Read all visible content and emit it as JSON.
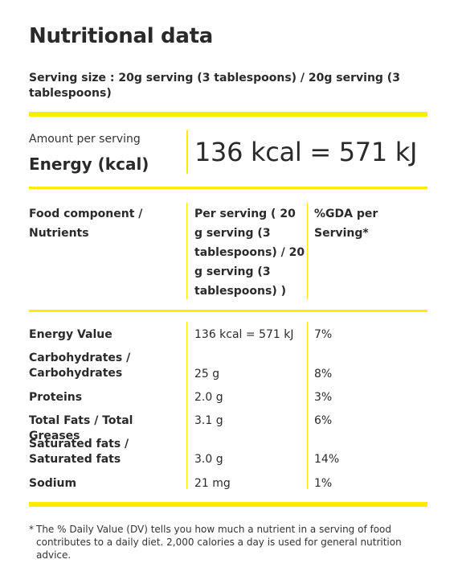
{
  "title": "Nutritional data",
  "serving_size": "Serving size : 20g serving (3 tablespoons) / 20g serving (3 tablespoons)",
  "energy_box": {
    "amount_label": "Amount per serving",
    "energy_label": "Energy (kcal)",
    "energy_value": "136 kcal = 571 kJ"
  },
  "table": {
    "headers": {
      "component": "Food component / Nutrients",
      "per_serving": "Per serving ( 20 g serving (3 tablespoons) / 20 g serving (3 tablespoons) )",
      "gda": "%GDA per Serving*"
    },
    "rows": [
      {
        "name": "Energy Value",
        "value": "136 kcal = 571 kJ",
        "pct": "7%"
      },
      {
        "name": "Carbohydrates / Carbohydrates",
        "value": "25 g",
        "pct": "8%"
      },
      {
        "name": "Proteins",
        "value": "2.0 g",
        "pct": "3%"
      },
      {
        "name": "Total Fats / Total Greases",
        "value": "3.1 g",
        "pct": "6%"
      },
      {
        "name": "Saturated fats / Saturated fats",
        "value": "3.0 g",
        "pct": "14%"
      },
      {
        "name": "Sodium",
        "value": "21 mg",
        "pct": "1%"
      }
    ]
  },
  "footnote": {
    "marker": "*",
    "text": "The % Daily Value (DV) tells you how much a nutrient in a serving of food contributes to a daily diet. 2,000 calories a day is used for general nutrition advice."
  },
  "colors": {
    "accent": "#ffec00",
    "text": "#2a2a2a"
  }
}
